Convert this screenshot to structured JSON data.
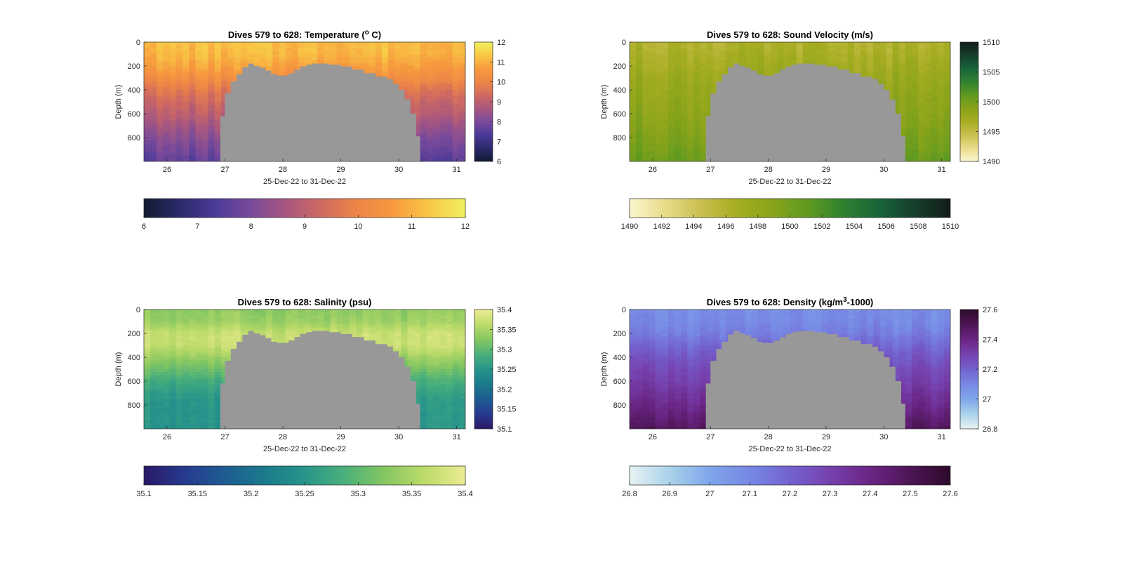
{
  "figure": {
    "colors": {
      "terrain": "#989898",
      "axis": "#262626",
      "background": "#ffffff"
    }
  },
  "chart_data": [
    {
      "type": "heatmap",
      "title": "Dives 579 to 628: Temperature (",
      "title_sup": "o",
      "title_tail": " C)",
      "xlabel": "25-Dec-22 to 31-Dec-22",
      "ylabel": "Depth (m)",
      "x_range": [
        25.6,
        31.15
      ],
      "x_ticks": [
        "26",
        "27",
        "28",
        "29",
        "30",
        "31"
      ],
      "y_range": [
        0,
        1000
      ],
      "y_reversed": true,
      "y_ticks": [
        "0",
        "200",
        "400",
        "600",
        "800"
      ],
      "colormap": [
        "#0f1b30",
        "#2b2a6b",
        "#4b3a99",
        "#7a4a9a",
        "#a8577f",
        "#d06a60",
        "#ee8646",
        "#f79a3e",
        "#f8c845",
        "#f0f05e"
      ],
      "clim": [
        6,
        12
      ],
      "colorbar_right_ticks": [
        "6",
        "7",
        "8",
        "9",
        "10",
        "11",
        "12"
      ],
      "colorbar_bottom_ticks": [
        "6",
        "7",
        "8",
        "9",
        "10",
        "11",
        "12"
      ],
      "profile_values": [
        [
          0,
          11.2
        ],
        [
          100,
          11.1
        ],
        [
          200,
          10.8
        ],
        [
          300,
          10.3
        ],
        [
          400,
          9.7
        ],
        [
          500,
          9.3
        ],
        [
          600,
          9.0
        ],
        [
          700,
          8.6
        ],
        [
          800,
          8.2
        ],
        [
          900,
          7.9
        ],
        [
          1000,
          7.6
        ]
      ]
    },
    {
      "type": "heatmap",
      "title": "Dives 579 to 628: Sound Velocity (m/s)",
      "xlabel": "25-Dec-22 to 31-Dec-22",
      "ylabel": "Depth (m)",
      "x_range": [
        25.6,
        31.15
      ],
      "x_ticks": [
        "26",
        "27",
        "28",
        "29",
        "30",
        "31"
      ],
      "y_range": [
        0,
        1000
      ],
      "y_reversed": true,
      "y_ticks": [
        "0",
        "200",
        "400",
        "600",
        "800"
      ],
      "colormap": [
        "#fbf6cf",
        "#e8dc8a",
        "#c9bf4e",
        "#a7ad22",
        "#88a31a",
        "#5f9a20",
        "#2f8130",
        "#18643a",
        "#163f2b",
        "#121c18"
      ],
      "clim": [
        1490,
        1510
      ],
      "colorbar_right_ticks": [
        "1490",
        "1495",
        "1500",
        "1505",
        "1510"
      ],
      "colorbar_bottom_ticks": [
        "1490",
        "1492",
        "1494",
        "1496",
        "1498",
        "1500",
        "1502",
        "1504",
        "1506",
        "1508",
        "1510"
      ],
      "profile_values": [
        [
          0,
          1496.0
        ],
        [
          100,
          1496.5
        ],
        [
          200,
          1497.0
        ],
        [
          300,
          1497.6
        ],
        [
          400,
          1498.0
        ],
        [
          500,
          1498.3
        ],
        [
          600,
          1498.6
        ],
        [
          700,
          1499.0
        ],
        [
          800,
          1499.5
        ],
        [
          900,
          1500.0
        ],
        [
          1000,
          1500.6
        ]
      ]
    },
    {
      "type": "heatmap",
      "title": "Dives 579 to 628: Salinity (psu)",
      "xlabel": "25-Dec-22 to 31-Dec-22",
      "ylabel": "Depth (m)",
      "x_range": [
        25.6,
        31.15
      ],
      "x_ticks": [
        "26",
        "27",
        "28",
        "29",
        "30",
        "31"
      ],
      "y_range": [
        0,
        1000
      ],
      "y_reversed": true,
      "y_ticks": [
        "0",
        "200",
        "400",
        "600",
        "800"
      ],
      "colormap": [
        "#2a1866",
        "#273a8f",
        "#1d5c91",
        "#1b7a8c",
        "#27958a",
        "#4bb07a",
        "#86c761",
        "#bddb6a",
        "#ecec94"
      ],
      "clim": [
        35.1,
        35.4
      ],
      "colorbar_right_ticks": [
        "35.1",
        "35.15",
        "35.2",
        "35.25",
        "35.3",
        "35.35",
        "35.4"
      ],
      "colorbar_bottom_ticks": [
        "35.1",
        "35.15",
        "35.2",
        "35.25",
        "35.3",
        "35.35",
        "35.4"
      ],
      "profile_values": [
        [
          0,
          35.33
        ],
        [
          100,
          35.34
        ],
        [
          200,
          35.37
        ],
        [
          300,
          35.37
        ],
        [
          400,
          35.34
        ],
        [
          500,
          35.31
        ],
        [
          600,
          35.28
        ],
        [
          700,
          35.26
        ],
        [
          800,
          35.25
        ],
        [
          900,
          35.25
        ],
        [
          1000,
          35.25
        ]
      ]
    },
    {
      "type": "heatmap",
      "title": "Dives 579 to 628: Density (kg/m",
      "title_sup": "3",
      "title_tail": "-1000)",
      "xlabel": "25-Dec-22 to 31-Dec-22",
      "ylabel": "Depth (m)",
      "x_range": [
        25.6,
        31.15
      ],
      "x_ticks": [
        "26",
        "27",
        "28",
        "29",
        "30",
        "31"
      ],
      "y_range": [
        0,
        1000
      ],
      "y_reversed": true,
      "y_ticks": [
        "0",
        "200",
        "400",
        "600",
        "800"
      ],
      "colormap": [
        "#e8f3f3",
        "#a9d2ea",
        "#7fa6ea",
        "#7788e4",
        "#7362cf",
        "#7641ad",
        "#6a2584",
        "#4e1556",
        "#2c0a2a"
      ],
      "clim": [
        26.8,
        27.6
      ],
      "colorbar_right_ticks": [
        "26.8",
        "27",
        "27.2",
        "27.4",
        "27.6"
      ],
      "colorbar_bottom_ticks": [
        "26.8",
        "26.9",
        "27",
        "27.1",
        "27.2",
        "27.3",
        "27.4",
        "27.5",
        "27.6"
      ],
      "profile_values": [
        [
          0,
          27.08
        ],
        [
          100,
          27.09
        ],
        [
          200,
          27.12
        ],
        [
          300,
          27.18
        ],
        [
          400,
          27.23
        ],
        [
          500,
          27.27
        ],
        [
          600,
          27.3
        ],
        [
          700,
          27.34
        ],
        [
          800,
          27.38
        ],
        [
          900,
          27.43
        ],
        [
          1000,
          27.48
        ]
      ]
    }
  ],
  "terrain_outline": [
    [
      26.92,
      1000
    ],
    [
      26.92,
      620
    ],
    [
      27.0,
      620
    ],
    [
      27.0,
      430
    ],
    [
      27.1,
      430
    ],
    [
      27.1,
      330
    ],
    [
      27.2,
      330
    ],
    [
      27.2,
      270
    ],
    [
      27.3,
      270
    ],
    [
      27.3,
      210
    ],
    [
      27.4,
      210
    ],
    [
      27.4,
      180
    ],
    [
      27.5,
      180
    ],
    [
      27.5,
      200
    ],
    [
      27.6,
      200
    ],
    [
      27.6,
      215
    ],
    [
      27.7,
      215
    ],
    [
      27.7,
      240
    ],
    [
      27.8,
      240
    ],
    [
      27.8,
      270
    ],
    [
      27.9,
      270
    ],
    [
      27.9,
      280
    ],
    [
      28.1,
      280
    ],
    [
      28.1,
      260
    ],
    [
      28.2,
      260
    ],
    [
      28.2,
      230
    ],
    [
      28.3,
      230
    ],
    [
      28.3,
      205
    ],
    [
      28.4,
      205
    ],
    [
      28.4,
      190
    ],
    [
      28.5,
      190
    ],
    [
      28.5,
      180
    ],
    [
      28.8,
      180
    ],
    [
      28.8,
      190
    ],
    [
      29.0,
      190
    ],
    [
      29.0,
      205
    ],
    [
      29.2,
      205
    ],
    [
      29.2,
      230
    ],
    [
      29.4,
      230
    ],
    [
      29.4,
      260
    ],
    [
      29.6,
      260
    ],
    [
      29.6,
      290
    ],
    [
      29.8,
      290
    ],
    [
      29.8,
      310
    ],
    [
      29.9,
      310
    ],
    [
      29.9,
      350
    ],
    [
      30.0,
      350
    ],
    [
      30.0,
      400
    ],
    [
      30.1,
      400
    ],
    [
      30.1,
      480
    ],
    [
      30.2,
      480
    ],
    [
      30.2,
      600
    ],
    [
      30.3,
      600
    ],
    [
      30.3,
      790
    ],
    [
      30.37,
      790
    ],
    [
      30.37,
      1000
    ]
  ]
}
